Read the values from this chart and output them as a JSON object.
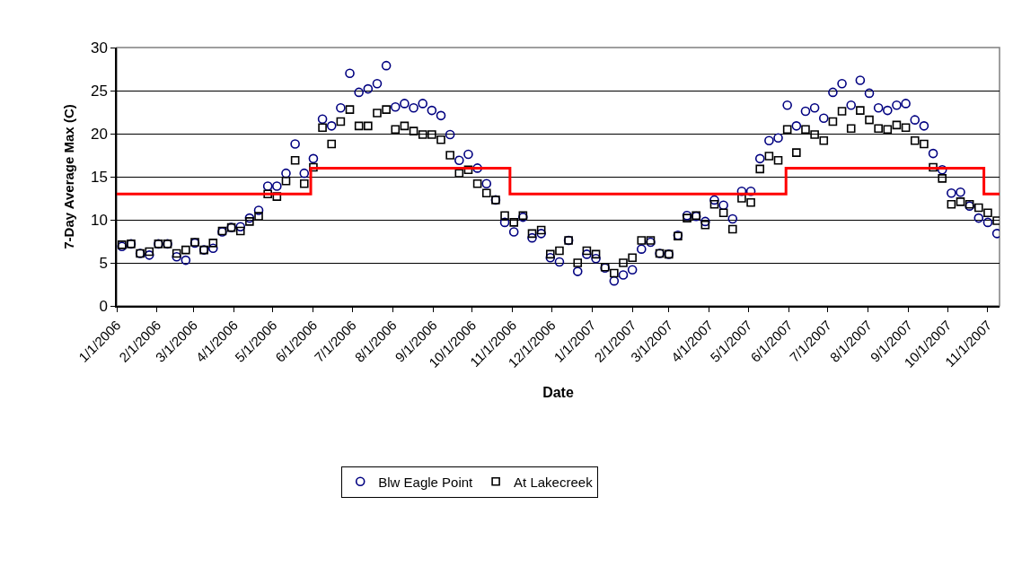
{
  "chart_data": {
    "type": "scatter",
    "xlabel": "Date",
    "ylabel": "7-Day Average Max (C)",
    "x": [
      "2006-01-05",
      "2006-01-12",
      "2006-01-19",
      "2006-01-26",
      "2006-02-02",
      "2006-02-09",
      "2006-02-16",
      "2006-02-23",
      "2006-03-02",
      "2006-03-09",
      "2006-03-16",
      "2006-03-23",
      "2006-03-30",
      "2006-04-06",
      "2006-04-13",
      "2006-04-20",
      "2006-04-27",
      "2006-05-04",
      "2006-05-11",
      "2006-05-18",
      "2006-05-25",
      "2006-06-01",
      "2006-06-08",
      "2006-06-15",
      "2006-06-22",
      "2006-06-29",
      "2006-07-06",
      "2006-07-13",
      "2006-07-20",
      "2006-07-27",
      "2006-08-03",
      "2006-08-10",
      "2006-08-17",
      "2006-08-24",
      "2006-08-31",
      "2006-09-07",
      "2006-09-14",
      "2006-09-21",
      "2006-09-28",
      "2006-10-05",
      "2006-10-12",
      "2006-10-19",
      "2006-10-26",
      "2006-11-02",
      "2006-11-09",
      "2006-11-16",
      "2006-11-23",
      "2006-11-30",
      "2006-12-07",
      "2006-12-14",
      "2006-12-21",
      "2006-12-28",
      "2007-01-04",
      "2007-01-11",
      "2007-01-18",
      "2007-01-25",
      "2007-02-01",
      "2007-02-08",
      "2007-02-15",
      "2007-02-22",
      "2007-03-01",
      "2007-03-08",
      "2007-03-15",
      "2007-03-22",
      "2007-03-29",
      "2007-04-05",
      "2007-04-12",
      "2007-04-19",
      "2007-04-26",
      "2007-05-03",
      "2007-05-10",
      "2007-05-17",
      "2007-05-24",
      "2007-05-31",
      "2007-06-07",
      "2007-06-14",
      "2007-06-21",
      "2007-06-28",
      "2007-07-05",
      "2007-07-12",
      "2007-07-19",
      "2007-07-26",
      "2007-08-02",
      "2007-08-09",
      "2007-08-16",
      "2007-08-23",
      "2007-08-30",
      "2007-09-06",
      "2007-09-13",
      "2007-09-20",
      "2007-09-27",
      "2007-10-04",
      "2007-10-11",
      "2007-10-18",
      "2007-10-25",
      "2007-11-01",
      "2007-11-08"
    ],
    "series": [
      {
        "name": "Blw Eagle Point",
        "color": "#000080",
        "marker": "circle",
        "values": [
          6.9,
          7.2,
          6.1,
          5.9,
          7.2,
          7.2,
          5.7,
          5.3,
          7.3,
          6.5,
          6.7,
          8.6,
          9.1,
          9.2,
          10.2,
          11.1,
          13.9,
          13.9,
          15.4,
          18.8,
          15.4,
          17.1,
          21.7,
          20.9,
          23.0,
          27.0,
          24.8,
          25.2,
          25.8,
          27.9,
          23.1,
          23.5,
          23.0,
          23.5,
          22.7,
          22.1,
          19.9,
          16.9,
          17.6,
          16.0,
          14.2,
          12.3,
          9.7,
          8.6,
          10.3,
          7.9,
          8.4,
          5.6,
          5.1,
          7.6,
          4.0,
          6.0,
          5.5,
          4.4,
          2.9,
          3.6,
          4.2,
          6.6,
          7.4,
          6.1,
          6.0,
          8.2,
          10.5,
          10.4,
          9.8,
          12.3,
          11.7,
          10.1,
          13.3,
          13.3,
          17.1,
          19.2,
          19.5,
          23.3,
          20.9,
          22.6,
          23.0,
          21.8,
          24.8,
          25.8,
          23.3,
          26.2,
          24.7,
          23.0,
          22.7,
          23.3,
          23.5,
          21.6,
          20.9,
          17.7,
          15.8,
          13.1,
          13.2,
          11.6,
          10.2,
          9.7,
          8.4
        ]
      },
      {
        "name": "At Lakecreek",
        "color": "#000000",
        "marker": "square",
        "values": [
          7.1,
          7.2,
          6.1,
          6.3,
          7.2,
          7.2,
          6.1,
          6.5,
          7.4,
          6.5,
          7.3,
          8.7,
          9.1,
          8.7,
          9.8,
          10.4,
          13.0,
          12.7,
          14.5,
          16.9,
          14.2,
          16.1,
          20.7,
          18.8,
          21.4,
          22.8,
          20.9,
          20.9,
          22.4,
          22.8,
          20.5,
          20.9,
          20.3,
          19.9,
          19.9,
          19.3,
          17.5,
          15.4,
          15.8,
          14.2,
          13.1,
          12.3,
          10.5,
          9.7,
          10.5,
          8.4,
          8.8,
          6.0,
          6.4,
          7.6,
          5.0,
          6.4,
          6.0,
          4.5,
          3.8,
          5.0,
          5.6,
          7.6,
          7.6,
          6.1,
          6.0,
          8.1,
          10.2,
          10.5,
          9.4,
          11.8,
          10.8,
          8.9,
          12.5,
          12.0,
          15.9,
          17.4,
          16.9,
          20.5,
          17.8,
          20.5,
          19.9,
          19.2,
          21.4,
          22.6,
          20.6,
          22.7,
          21.6,
          20.6,
          20.5,
          21.0,
          20.7,
          19.2,
          18.8,
          16.1,
          14.8,
          11.8,
          12.1,
          11.8,
          11.4,
          10.8,
          9.9
        ]
      },
      {
        "type": "step",
        "color": "#ff0000",
        "marker": "none",
        "x": [
          "2006-01-01",
          "2006-05-30",
          "2006-10-30",
          "2007-05-30",
          "2007-10-29",
          "2007-11-10"
        ],
        "values": [
          13,
          16,
          13,
          16,
          13,
          13
        ]
      }
    ],
    "xlim": [
      "2006-01-01",
      "2007-11-10"
    ],
    "xticks": [
      {
        "value": "2006-01-01",
        "label": "1/1/2006"
      },
      {
        "value": "2006-02-01",
        "label": "2/1/2006"
      },
      {
        "value": "2006-03-01",
        "label": "3/1/2006"
      },
      {
        "value": "2006-04-01",
        "label": "4/1/2006"
      },
      {
        "value": "2006-05-01",
        "label": "5/1/2006"
      },
      {
        "value": "2006-06-01",
        "label": "6/1/2006"
      },
      {
        "value": "2006-07-01",
        "label": "7/1/2006"
      },
      {
        "value": "2006-08-01",
        "label": "8/1/2006"
      },
      {
        "value": "2006-09-01",
        "label": "9/1/2006"
      },
      {
        "value": "2006-10-01",
        "label": "10/1/2006"
      },
      {
        "value": "2006-11-01",
        "label": "11/1/2006"
      },
      {
        "value": "2006-12-01",
        "label": "12/1/2006"
      },
      {
        "value": "2007-01-01",
        "label": "1/1/2007"
      },
      {
        "value": "2007-02-01",
        "label": "2/1/2007"
      },
      {
        "value": "2007-03-01",
        "label": "3/1/2007"
      },
      {
        "value": "2007-04-01",
        "label": "4/1/2007"
      },
      {
        "value": "2007-05-01",
        "label": "5/1/2007"
      },
      {
        "value": "2007-06-01",
        "label": "6/1/2007"
      },
      {
        "value": "2007-07-01",
        "label": "7/1/2007"
      },
      {
        "value": "2007-08-01",
        "label": "8/1/2007"
      },
      {
        "value": "2007-09-01",
        "label": "9/1/2007"
      },
      {
        "value": "2007-10-01",
        "label": "10/1/2007"
      },
      {
        "value": "2007-11-01",
        "label": "11/1/2007"
      }
    ],
    "ylim": [
      0,
      30
    ],
    "yticks": [
      0,
      5,
      10,
      15,
      20,
      25,
      30
    ],
    "grid": "y",
    "legend": "bottom"
  }
}
